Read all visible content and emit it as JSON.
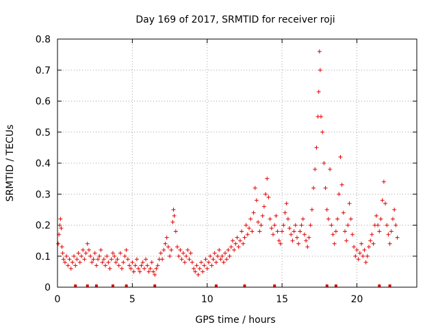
{
  "chart_data": {
    "type": "scatter",
    "title": "Day 169 of 2017, SRMTID for receiver roji",
    "xlabel": "GPS time / hours",
    "ylabel": "SRMTID / TECUs",
    "xlim": [
      0,
      24
    ],
    "ylim": [
      0,
      0.8
    ],
    "xticks": [
      0,
      5,
      10,
      15,
      20
    ],
    "yticks": [
      0,
      0.1,
      0.2,
      0.3,
      0.4,
      0.5,
      0.6,
      0.7,
      0.8
    ],
    "xtick_labels": [
      "0",
      "5",
      "10",
      "15",
      "20"
    ],
    "ytick_labels": [
      "0",
      "0.1",
      "0.2",
      "0.3",
      "0.4",
      "0.5",
      "0.6",
      "0.7",
      "0.8"
    ],
    "grid": true,
    "marker": "+",
    "color": "#e00000",
    "baseline_markers_x": [
      1.2,
      2.0,
      2.6,
      3.7,
      4.6,
      6.5,
      10.6,
      12.5,
      14.5,
      18.0,
      18.6,
      21.5,
      22.2
    ],
    "series": [
      {
        "name": "SRMTID",
        "points": [
          [
            0.05,
            0.14
          ],
          [
            0.1,
            0.17
          ],
          [
            0.15,
            0.2
          ],
          [
            0.2,
            0.22
          ],
          [
            0.25,
            0.19
          ],
          [
            0.3,
            0.13
          ],
          [
            0.35,
            0.11
          ],
          [
            0.4,
            0.09
          ],
          [
            0.5,
            0.08
          ],
          [
            0.6,
            0.1
          ],
          [
            0.7,
            0.07
          ],
          [
            0.8,
            0.09
          ],
          [
            0.9,
            0.06
          ],
          [
            1.0,
            0.08
          ],
          [
            1.1,
            0.1
          ],
          [
            1.2,
            0.07
          ],
          [
            1.3,
            0.09
          ],
          [
            1.4,
            0.11
          ],
          [
            1.5,
            0.08
          ],
          [
            1.6,
            0.1
          ],
          [
            1.7,
            0.12
          ],
          [
            1.8,
            0.09
          ],
          [
            1.9,
            0.11
          ],
          [
            2.0,
            0.14
          ],
          [
            2.1,
            0.12
          ],
          [
            2.2,
            0.1
          ],
          [
            2.3,
            0.08
          ],
          [
            2.4,
            0.09
          ],
          [
            2.5,
            0.11
          ],
          [
            2.6,
            0.07
          ],
          [
            2.7,
            0.09
          ],
          [
            2.8,
            0.1
          ],
          [
            2.9,
            0.12
          ],
          [
            3.0,
            0.08
          ],
          [
            3.1,
            0.09
          ],
          [
            3.2,
            0.07
          ],
          [
            3.3,
            0.1
          ],
          [
            3.4,
            0.08
          ],
          [
            3.5,
            0.06
          ],
          [
            3.6,
            0.09
          ],
          [
            3.7,
            0.11
          ],
          [
            3.8,
            0.1
          ],
          [
            3.9,
            0.08
          ],
          [
            4.0,
            0.09
          ],
          [
            4.1,
            0.07
          ],
          [
            4.2,
            0.11
          ],
          [
            4.3,
            0.06
          ],
          [
            4.4,
            0.08
          ],
          [
            4.5,
            0.1
          ],
          [
            4.6,
            0.12
          ],
          [
            4.7,
            0.09
          ],
          [
            4.8,
            0.07
          ],
          [
            4.9,
            0.06
          ],
          [
            5.0,
            0.08
          ],
          [
            5.1,
            0.05
          ],
          [
            5.2,
            0.07
          ],
          [
            5.3,
            0.09
          ],
          [
            5.4,
            0.06
          ],
          [
            5.5,
            0.05
          ],
          [
            5.6,
            0.07
          ],
          [
            5.7,
            0.08
          ],
          [
            5.8,
            0.06
          ],
          [
            5.9,
            0.09
          ],
          [
            6.0,
            0.07
          ],
          [
            6.1,
            0.05
          ],
          [
            6.2,
            0.06
          ],
          [
            6.3,
            0.08
          ],
          [
            6.4,
            0.05
          ],
          [
            6.5,
            0.04
          ],
          [
            6.6,
            0.06
          ],
          [
            6.7,
            0.07
          ],
          [
            6.8,
            0.09
          ],
          [
            6.9,
            0.11
          ],
          [
            7.0,
            0.09
          ],
          [
            7.1,
            0.12
          ],
          [
            7.2,
            0.14
          ],
          [
            7.3,
            0.16
          ],
          [
            7.4,
            0.13
          ],
          [
            7.5,
            0.1
          ],
          [
            7.6,
            0.12
          ],
          [
            7.7,
            0.21
          ],
          [
            7.75,
            0.25
          ],
          [
            7.8,
            0.23
          ],
          [
            7.9,
            0.18
          ],
          [
            8.0,
            0.13
          ],
          [
            8.1,
            0.1
          ],
          [
            8.2,
            0.12
          ],
          [
            8.3,
            0.09
          ],
          [
            8.4,
            0.11
          ],
          [
            8.5,
            0.08
          ],
          [
            8.6,
            0.1
          ],
          [
            8.7,
            0.12
          ],
          [
            8.8,
            0.09
          ],
          [
            8.9,
            0.11
          ],
          [
            9.0,
            0.08
          ],
          [
            9.1,
            0.06
          ],
          [
            9.2,
            0.05
          ],
          [
            9.3,
            0.07
          ],
          [
            9.4,
            0.04
          ],
          [
            9.5,
            0.06
          ],
          [
            9.6,
            0.08
          ],
          [
            9.7,
            0.05
          ],
          [
            9.8,
            0.07
          ],
          [
            9.9,
            0.09
          ],
          [
            10.0,
            0.06
          ],
          [
            10.1,
            0.08
          ],
          [
            10.2,
            0.1
          ],
          [
            10.3,
            0.07
          ],
          [
            10.4,
            0.09
          ],
          [
            10.5,
            0.11
          ],
          [
            10.6,
            0.08
          ],
          [
            10.7,
            0.1
          ],
          [
            10.8,
            0.12
          ],
          [
            10.9,
            0.09
          ],
          [
            11.0,
            0.1
          ],
          [
            11.1,
            0.08
          ],
          [
            11.2,
            0.11
          ],
          [
            11.3,
            0.09
          ],
          [
            11.4,
            0.12
          ],
          [
            11.5,
            0.1
          ],
          [
            11.6,
            0.13
          ],
          [
            11.7,
            0.15
          ],
          [
            11.8,
            0.12
          ],
          [
            11.9,
            0.14
          ],
          [
            12.0,
            0.16
          ],
          [
            12.1,
            0.13
          ],
          [
            12.2,
            0.15
          ],
          [
            12.3,
            0.18
          ],
          [
            12.4,
            0.14
          ],
          [
            12.5,
            0.16
          ],
          [
            12.6,
            0.2
          ],
          [
            12.7,
            0.17
          ],
          [
            12.8,
            0.19
          ],
          [
            12.9,
            0.22
          ],
          [
            13.0,
            0.18
          ],
          [
            13.1,
            0.24
          ],
          [
            13.2,
            0.32
          ],
          [
            13.3,
            0.28
          ],
          [
            13.4,
            0.21
          ],
          [
            13.5,
            0.18
          ],
          [
            13.6,
            0.2
          ],
          [
            13.7,
            0.23
          ],
          [
            13.8,
            0.26
          ],
          [
            13.9,
            0.3
          ],
          [
            14.0,
            0.35
          ],
          [
            14.1,
            0.29
          ],
          [
            14.2,
            0.22
          ],
          [
            14.3,
            0.19
          ],
          [
            14.4,
            0.17
          ],
          [
            14.5,
            0.2
          ],
          [
            14.6,
            0.23
          ],
          [
            14.7,
            0.18
          ],
          [
            14.8,
            0.15
          ],
          [
            14.9,
            0.14
          ],
          [
            15.0,
            0.18
          ],
          [
            15.1,
            0.2
          ],
          [
            15.2,
            0.24
          ],
          [
            15.3,
            0.27
          ],
          [
            15.4,
            0.22
          ],
          [
            15.5,
            0.19
          ],
          [
            15.6,
            0.17
          ],
          [
            15.7,
            0.15
          ],
          [
            15.8,
            0.18
          ],
          [
            15.9,
            0.2
          ],
          [
            16.0,
            0.16
          ],
          [
            16.1,
            0.14
          ],
          [
            16.2,
            0.18
          ],
          [
            16.3,
            0.2
          ],
          [
            16.4,
            0.22
          ],
          [
            16.5,
            0.17
          ],
          [
            16.6,
            0.15
          ],
          [
            16.7,
            0.13
          ],
          [
            16.8,
            0.16
          ],
          [
            16.9,
            0.2
          ],
          [
            17.0,
            0.25
          ],
          [
            17.1,
            0.32
          ],
          [
            17.2,
            0.38
          ],
          [
            17.3,
            0.45
          ],
          [
            17.4,
            0.55
          ],
          [
            17.45,
            0.63
          ],
          [
            17.5,
            0.76
          ],
          [
            17.55,
            0.7
          ],
          [
            17.6,
            0.55
          ],
          [
            17.7,
            0.5
          ],
          [
            17.8,
            0.4
          ],
          [
            17.9,
            0.32
          ],
          [
            18.0,
            0.25
          ],
          [
            18.1,
            0.22
          ],
          [
            18.2,
            0.38
          ],
          [
            18.3,
            0.2
          ],
          [
            18.4,
            0.17
          ],
          [
            18.5,
            0.14
          ],
          [
            18.6,
            0.18
          ],
          [
            18.7,
            0.22
          ],
          [
            18.8,
            0.3
          ],
          [
            18.9,
            0.42
          ],
          [
            19.0,
            0.33
          ],
          [
            19.1,
            0.24
          ],
          [
            19.2,
            0.18
          ],
          [
            19.3,
            0.15
          ],
          [
            19.4,
            0.2
          ],
          [
            19.5,
            0.27
          ],
          [
            19.6,
            0.22
          ],
          [
            19.7,
            0.17
          ],
          [
            19.8,
            0.13
          ],
          [
            19.9,
            0.1
          ],
          [
            20.0,
            0.12
          ],
          [
            20.1,
            0.09
          ],
          [
            20.2,
            0.11
          ],
          [
            20.3,
            0.14
          ],
          [
            20.4,
            0.1
          ],
          [
            20.5,
            0.12
          ],
          [
            20.6,
            0.08
          ],
          [
            20.7,
            0.1
          ],
          [
            20.8,
            0.13
          ],
          [
            20.9,
            0.15
          ],
          [
            21.0,
            0.17
          ],
          [
            21.1,
            0.14
          ],
          [
            21.2,
            0.2
          ],
          [
            21.3,
            0.23
          ],
          [
            21.4,
            0.2
          ],
          [
            21.5,
            0.18
          ],
          [
            21.6,
            0.22
          ],
          [
            21.7,
            0.28
          ],
          [
            21.8,
            0.34
          ],
          [
            21.9,
            0.27
          ],
          [
            22.0,
            0.2
          ],
          [
            22.1,
            0.17
          ],
          [
            22.2,
            0.14
          ],
          [
            22.3,
            0.18
          ],
          [
            22.4,
            0.22
          ],
          [
            22.5,
            0.25
          ],
          [
            22.6,
            0.2
          ],
          [
            22.7,
            0.16
          ]
        ]
      }
    ]
  }
}
